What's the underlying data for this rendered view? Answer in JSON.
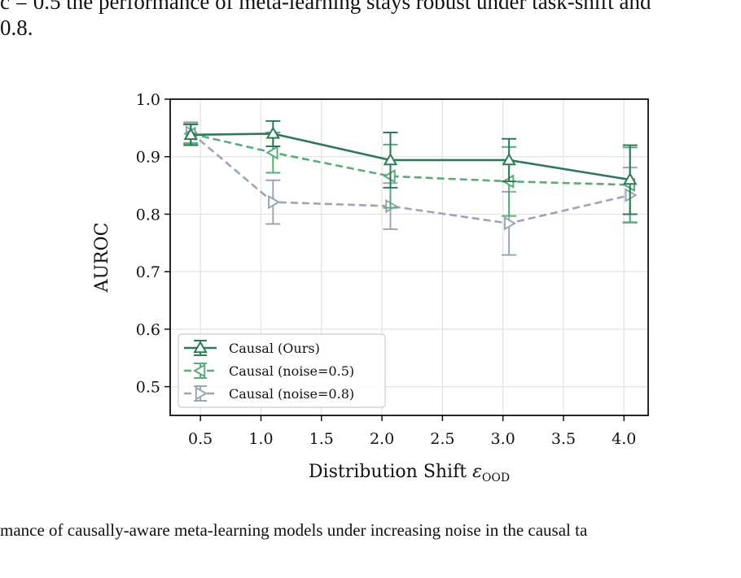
{
  "text": {
    "top_line1": "c = 0.5 the performance of meta-learning stays robust under task-shift and",
    "top_line2": "0.8.",
    "caption": "mance of causally-aware meta-learning models under increasing noise in the causal ta"
  },
  "chart_data": {
    "type": "line",
    "title": "",
    "xlabel": "Distribution Shift εOOD",
    "xlabel_main": "Distribution Shift ",
    "xlabel_symbol": "ε",
    "xlabel_subscript": "OOD",
    "ylabel": "AUROC",
    "xlim": [
      0.25,
      4.2
    ],
    "ylim": [
      0.45,
      1.0
    ],
    "xticks": [
      "0.5",
      "1.0",
      "1.5",
      "2.0",
      "2.5",
      "3.0",
      "3.5",
      "4.0"
    ],
    "yticks": [
      "0.5",
      "0.6",
      "0.7",
      "0.8",
      "0.9",
      "1.0"
    ],
    "grid": true,
    "legend_position": "lower-left",
    "series": [
      {
        "name": "Causal (Ours)",
        "color": "#2e7a57",
        "dashed": false,
        "marker": "triangle-up",
        "x": [
          0.42,
          1.1,
          2.07,
          3.05,
          4.05
        ],
        "y": [
          0.938,
          0.94,
          0.894,
          0.894,
          0.86
        ],
        "err": [
          0.018,
          0.022,
          0.048,
          0.037,
          0.06
        ]
      },
      {
        "name": "Causal (noise=0.5)",
        "color": "#5aab7a",
        "dashed": true,
        "marker": "triangle-left",
        "x": [
          0.42,
          1.1,
          2.07,
          3.05,
          4.05
        ],
        "y": [
          0.94,
          0.907,
          0.866,
          0.857,
          0.851
        ],
        "err": [
          0.017,
          0.035,
          0.055,
          0.06,
          0.065
        ]
      },
      {
        "name": "Causal (noise=0.8)",
        "color": "#9aa6b5",
        "dashed": true,
        "marker": "triangle-right",
        "x": [
          0.42,
          1.1,
          2.07,
          3.05,
          4.05
        ],
        "y": [
          0.942,
          0.821,
          0.814,
          0.784,
          0.833
        ],
        "err": [
          0.018,
          0.038,
          0.04,
          0.055,
          0.048
        ]
      }
    ]
  }
}
